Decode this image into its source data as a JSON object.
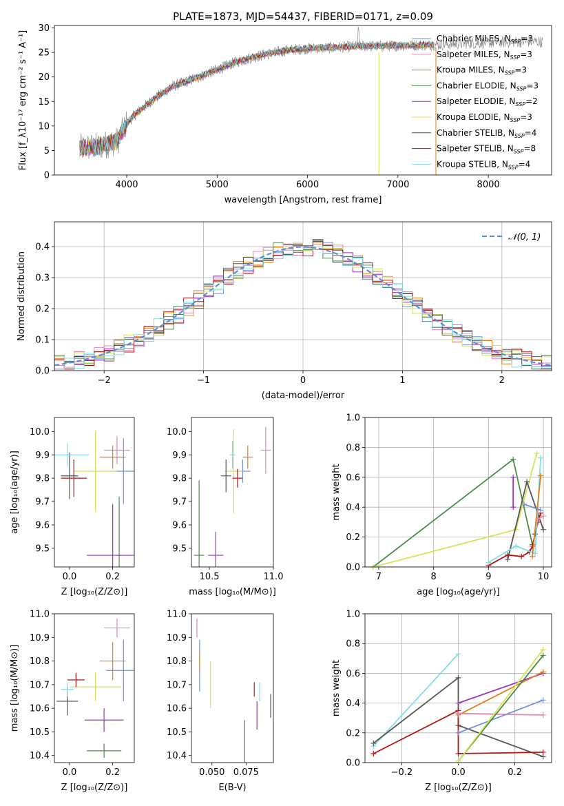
{
  "colors": {
    "chabrier_miles": "#6b8fe0",
    "salpeter_miles": "#e683b8",
    "kroupa_miles": "#e07d1a",
    "chabrier_elodie": "#4a8a4a",
    "salpeter_elodie": "#9b30c0",
    "kroupa_elodie": "#d4e35a",
    "chabrier_stelib": "#555555",
    "salpeter_stelib": "#b01414",
    "kroupa_stelib": "#7fdde6",
    "normal_curve": "#5b8fd6"
  },
  "chart_data": [
    {
      "id": "spectrum",
      "type": "line",
      "title": "PLATE=1873, MJD=54437, FIBERID=0171, z=0.09",
      "xlabel": "wavelength [Angstrom, rest frame]",
      "ylabel": "Flux [f_λ10⁻¹⁷ erg cm⁻² s⁻¹ A⁻¹]",
      "xlim": [
        3200,
        8700
      ],
      "ylim": [
        0,
        30.5
      ],
      "xticks": [
        4000,
        5000,
        6000,
        7000,
        8000
      ],
      "yticks": [
        0,
        5,
        10,
        15,
        20,
        25,
        30
      ],
      "continuum": {
        "wavelength": [
          3480,
          3700,
          3900,
          4000,
          4100,
          4300,
          4500,
          4800,
          5000,
          5200,
          5500,
          5800,
          6000,
          6300,
          6600,
          6800,
          7000,
          7200,
          7400,
          7600,
          7800,
          8000,
          8200,
          8400,
          8600
        ],
        "flux": [
          5.5,
          5.8,
          7.0,
          10.5,
          12.5,
          15.5,
          18.0,
          20.0,
          21.5,
          23.0,
          24.5,
          25.5,
          25.8,
          26.0,
          26.3,
          26.3,
          26.4,
          26.5,
          26.6,
          26.7,
          26.9,
          27.0,
          27.1,
          27.2,
          27.2
        ]
      },
      "legend": [
        {
          "key": "chabrier_miles",
          "name": "Chabrier MILES, N",
          "sub": "SSP",
          "tail": "=3"
        },
        {
          "key": "salpeter_miles",
          "name": "Salpeter MILES, N",
          "sub": "SSP",
          "tail": "=3"
        },
        {
          "key": "kroupa_miles",
          "name": "Kroupa MILES, N",
          "sub": "SSP",
          "tail": "=3"
        },
        {
          "key": "chabrier_elodie",
          "name": "Chabrier ELODIE, N",
          "sub": "SSP",
          "tail": "=3"
        },
        {
          "key": "salpeter_elodie",
          "name": "Salpeter ELODIE, N",
          "sub": "SSP",
          "tail": "=2"
        },
        {
          "key": "kroupa_elodie",
          "name": "Kroupa ELODIE, N",
          "sub": "SSP",
          "tail": "=3"
        },
        {
          "key": "chabrier_stelib",
          "name": "Chabrier STELIB, N",
          "sub": "SSP",
          "tail": "=4"
        },
        {
          "key": "salpeter_stelib",
          "name": "Salpeter STELIB, N",
          "sub": "SSP",
          "tail": "=8"
        },
        {
          "key": "kroupa_stelib",
          "name": "Kroupa STELIB, N",
          "sub": "SSP",
          "tail": "=4"
        }
      ],
      "legend_placement": "top-right"
    },
    {
      "id": "residuals",
      "type": "histogram",
      "xlabel": "(data-model)/error",
      "ylabel": "Normed distribution",
      "xlim": [
        -2.5,
        2.5
      ],
      "ylim": [
        0,
        0.48
      ],
      "xticks": [
        -2,
        -1,
        0,
        1,
        2
      ],
      "yticks": [
        0.0,
        0.1,
        0.2,
        0.3,
        0.4
      ],
      "grid": true,
      "bin_width": 0.1,
      "normal_curve_label": "𝒩(0, 1)",
      "legend_placement": "top-right"
    },
    {
      "id": "age_vs_Z",
      "type": "errorbar",
      "xlabel": "Z [log₁₀(Z/Z⊙)]",
      "ylabel": "age  [log₁₀(age/yr)]",
      "xlim": [
        -0.07,
        0.3
      ],
      "ylim": [
        9.42,
        10.06
      ],
      "xticks": [
        0.0,
        0.2
      ],
      "yticks": [
        9.5,
        9.6,
        9.7,
        9.8,
        9.9,
        10.0
      ],
      "points": [
        {
          "key": "chabrier_miles",
          "x": 0.25,
          "xerr": 0.06,
          "y": 9.83,
          "yerr": 0.14
        },
        {
          "key": "salpeter_miles",
          "x": 0.22,
          "xerr": 0.06,
          "y": 9.92,
          "yerr": 0.06
        },
        {
          "key": "kroupa_miles",
          "x": 0.2,
          "xerr": 0.06,
          "y": 9.89,
          "yerr": 0.05
        },
        {
          "key": "chabrier_elodie",
          "x": 0.23,
          "xerr": 0.01,
          "y": 9.47,
          "yerr": 0.25
        },
        {
          "key": "salpeter_elodie",
          "x": 0.2,
          "xerr": 0.12,
          "y": 9.47,
          "yerr": 0.22
        },
        {
          "key": "kroupa_elodie",
          "x": 0.12,
          "xerr": 0.1,
          "y": 9.83,
          "yerr": 0.17
        },
        {
          "key": "chabrier_stelib",
          "x": 0.0,
          "xerr": 0.04,
          "y": 9.81,
          "yerr": 0.1
        },
        {
          "key": "salpeter_stelib",
          "x": 0.02,
          "xerr": 0.06,
          "y": 9.8,
          "yerr": 0.08
        },
        {
          "key": "kroupa_stelib",
          "x": -0.01,
          "xerr": 0.1,
          "y": 9.9,
          "yerr": 0.05
        }
      ]
    },
    {
      "id": "age_vs_mass",
      "type": "errorbar",
      "xlabel": "mass [log₁₀(M/M⊙)]",
      "ylabel": "",
      "xlim": [
        10.36,
        11.0
      ],
      "ylim": [
        9.42,
        10.06
      ],
      "xticks": [
        10.5,
        11.0
      ],
      "yticks": [
        9.5,
        9.6,
        9.7,
        9.8,
        9.9,
        10.0
      ],
      "points": [
        {
          "key": "chabrier_miles",
          "x": 10.76,
          "xerr": 0.06,
          "y": 9.83,
          "yerr": 0.05
        },
        {
          "key": "salpeter_miles",
          "x": 10.94,
          "xerr": 0.04,
          "y": 9.92,
          "yerr": 0.1
        },
        {
          "key": "kroupa_miles",
          "x": 10.8,
          "xerr": 0.04,
          "y": 9.89,
          "yerr": 0.05
        },
        {
          "key": "chabrier_elodie",
          "x": 10.42,
          "xerr": 0.04,
          "y": 9.47,
          "yerr": 0.32
        },
        {
          "key": "salpeter_elodie",
          "x": 10.55,
          "xerr": 0.06,
          "y": 9.47,
          "yerr": 0.1
        },
        {
          "key": "kroupa_elodie",
          "x": 10.69,
          "xerr": 0.07,
          "y": 9.83,
          "yerr": 0.18
        },
        {
          "key": "chabrier_stelib",
          "x": 10.63,
          "xerr": 0.04,
          "y": 9.81,
          "yerr": 0.07
        },
        {
          "key": "salpeter_stelib",
          "x": 10.72,
          "xerr": 0.04,
          "y": 9.8,
          "yerr": 0.04
        },
        {
          "key": "kroupa_stelib",
          "x": 10.68,
          "xerr": 0.02,
          "y": 9.9,
          "yerr": 0.06
        }
      ]
    },
    {
      "id": "weight_vs_age",
      "type": "line",
      "xlabel": "age  [log₁₀(age/yr)]",
      "ylabel": "mass weight",
      "xlim": [
        6.75,
        10.15
      ],
      "ylim": [
        0,
        1.0
      ],
      "xticks": [
        7,
        8,
        9,
        10
      ],
      "yticks": [
        0.0,
        0.2,
        0.4,
        0.6,
        0.8,
        1.0
      ],
      "grid": true,
      "series": [
        {
          "key": "chabrier_elodie",
          "x": [
            6.9,
            9.45,
            9.8
          ],
          "y": [
            0.0,
            0.72,
            0.15
          ]
        },
        {
          "key": "kroupa_elodie",
          "x": [
            6.9,
            9.5,
            9.88
          ],
          "y": [
            0.0,
            0.25,
            0.76
          ]
        },
        {
          "key": "chabrier_stelib",
          "x": [
            9.35,
            9.7,
            10.0
          ],
          "y": [
            0.05,
            0.57,
            0.25
          ]
        },
        {
          "key": "salpeter_stelib",
          "x": [
            9.0,
            9.35,
            9.6,
            9.75,
            9.8,
            9.85,
            9.9,
            9.95
          ],
          "y": [
            0.01,
            0.08,
            0.07,
            0.1,
            0.14,
            0.22,
            0.3,
            0.36
          ]
        },
        {
          "key": "kroupa_stelib",
          "x": [
            9.0,
            9.5,
            9.85,
            9.95
          ],
          "y": [
            0.03,
            0.14,
            0.09,
            0.73
          ]
        },
        {
          "key": "salpeter_elodie",
          "x": [
            9.45,
            9.45
          ],
          "y": [
            0.4,
            0.6
          ]
        },
        {
          "key": "kroupa_miles",
          "x": [
            9.8,
            9.95
          ],
          "y": [
            0.07,
            0.61
          ]
        },
        {
          "key": "chabrier_miles",
          "x": [
            9.65,
            9.95
          ],
          "y": [
            0.42,
            0.38
          ]
        },
        {
          "key": "salpeter_miles",
          "x": [
            9.9,
            10.0
          ],
          "y": [
            0.32,
            0.34
          ]
        }
      ]
    },
    {
      "id": "mass_vs_Z",
      "type": "errorbar",
      "xlabel": "Z [log₁₀(Z/Z⊙)]",
      "ylabel": "mass [log₁₀(M/M⊙)]",
      "xlim": [
        -0.07,
        0.3
      ],
      "ylim": [
        10.37,
        11.0
      ],
      "xticks": [
        0.0,
        0.2
      ],
      "yticks": [
        10.4,
        10.5,
        10.6,
        10.7,
        10.8,
        10.9,
        11.0
      ],
      "points": [
        {
          "key": "chabrier_miles",
          "x": 0.25,
          "xerr": 0.08,
          "y": 10.76,
          "yerr": 0.13
        },
        {
          "key": "salpeter_miles",
          "x": 0.22,
          "xerr": 0.06,
          "y": 10.94,
          "yerr": 0.04
        },
        {
          "key": "kroupa_miles",
          "x": 0.2,
          "xerr": 0.06,
          "y": 10.8,
          "yerr": 0.08
        },
        {
          "key": "chabrier_elodie",
          "x": 0.16,
          "xerr": 0.08,
          "y": 10.42,
          "yerr": 0.03
        },
        {
          "key": "salpeter_elodie",
          "x": 0.16,
          "xerr": 0.09,
          "y": 10.55,
          "yerr": 0.05
        },
        {
          "key": "kroupa_elodie",
          "x": 0.12,
          "xerr": 0.12,
          "y": 10.69,
          "yerr": 0.06
        },
        {
          "key": "chabrier_stelib",
          "x": -0.01,
          "xerr": 0.05,
          "y": 10.63,
          "yerr": 0.06
        },
        {
          "key": "salpeter_stelib",
          "x": 0.03,
          "xerr": 0.04,
          "y": 10.72,
          "yerr": 0.03
        },
        {
          "key": "kroupa_stelib",
          "x": -0.01,
          "xerr": 0.03,
          "y": 10.68,
          "yerr": 0.03
        }
      ]
    },
    {
      "id": "mass_vs_ebv",
      "type": "errorbar",
      "xlabel": "E(B-V)",
      "ylabel": "",
      "xlim": [
        0.035,
        0.095
      ],
      "ylim": [
        10.37,
        11.0
      ],
      "xticks": [
        0.05,
        0.075
      ],
      "xticklabels": [
        "0.050",
        "0.075"
      ],
      "yticks": [
        10.4,
        10.5,
        10.6,
        10.7,
        10.8,
        10.9,
        11.0
      ],
      "points": [
        {
          "key": "chabrier_miles",
          "x": 0.041,
          "xerr": 0,
          "y": 10.78,
          "yerr": 0.11
        },
        {
          "key": "salpeter_miles",
          "x": 0.039,
          "xerr": 0,
          "y": 10.94,
          "yerr": 0.04
        },
        {
          "key": "kroupa_miles",
          "x": 0.041,
          "xerr": 0,
          "y": 10.8,
          "yerr": 0.04
        },
        {
          "key": "chabrier_elodie",
          "x": 0.074,
          "xerr": 0,
          "y": 10.46,
          "yerr": 0.09
        },
        {
          "key": "salpeter_elodie",
          "x": 0.083,
          "xerr": 0,
          "y": 10.57,
          "yerr": 0.06
        },
        {
          "key": "kroupa_elodie",
          "x": 0.049,
          "xerr": 0,
          "y": 10.7,
          "yerr": 0.1
        },
        {
          "key": "chabrier_stelib",
          "x": 0.093,
          "xerr": 0,
          "y": 10.61,
          "yerr": 0.05
        },
        {
          "key": "salpeter_stelib",
          "x": 0.081,
          "xerr": 0,
          "y": 10.68,
          "yerr": 0.03
        },
        {
          "key": "kroupa_stelib",
          "x": 0.085,
          "xerr": 0,
          "y": 10.67,
          "yerr": 0.04
        }
      ]
    },
    {
      "id": "weight_vs_Z",
      "type": "line",
      "xlabel": "Z [log₁₀(Z/Z⊙)]",
      "ylabel": "mass weight",
      "xlim": [
        -0.33,
        0.33
      ],
      "ylim": [
        0,
        1.0
      ],
      "xticks": [
        -0.2,
        0.0,
        0.2
      ],
      "xticklabels": [
        "−0.2",
        "0.0",
        "0.2"
      ],
      "yticks": [
        0.0,
        0.2,
        0.4,
        0.6,
        0.8,
        1.0
      ],
      "grid": true,
      "series": [
        {
          "key": "kroupa_stelib",
          "x": [
            -0.3,
            0.0
          ],
          "y": [
            0.11,
            0.73
          ]
        },
        {
          "key": "chabrier_stelib",
          "x": [
            -0.3,
            0.0,
            0.0,
            0.3
          ],
          "y": [
            0.13,
            0.57,
            0.25,
            0.04
          ]
        },
        {
          "key": "salpeter_stelib",
          "x": [
            -0.3,
            0.0,
            0.0,
            0.3
          ],
          "y": [
            0.06,
            0.35,
            0.06,
            0.07
          ]
        },
        {
          "key": "salpeter_elodie",
          "x": [
            0.0,
            0.3
          ],
          "y": [
            0.4,
            0.6
          ]
        },
        {
          "key": "kroupa_miles",
          "x": [
            0.0,
            0.3
          ],
          "y": [
            0.32,
            0.61
          ]
        },
        {
          "key": "salpeter_miles",
          "x": [
            0.0,
            0.3
          ],
          "y": [
            0.33,
            0.32
          ]
        },
        {
          "key": "chabrier_miles",
          "x": [
            0.0,
            0.3
          ],
          "y": [
            0.2,
            0.42
          ]
        },
        {
          "key": "chabrier_elodie",
          "x": [
            0.0,
            0.3
          ],
          "y": [
            0.01,
            0.72
          ]
        },
        {
          "key": "kroupa_elodie",
          "x": [
            0.0,
            0.3
          ],
          "y": [
            0.01,
            0.76
          ]
        }
      ]
    }
  ]
}
